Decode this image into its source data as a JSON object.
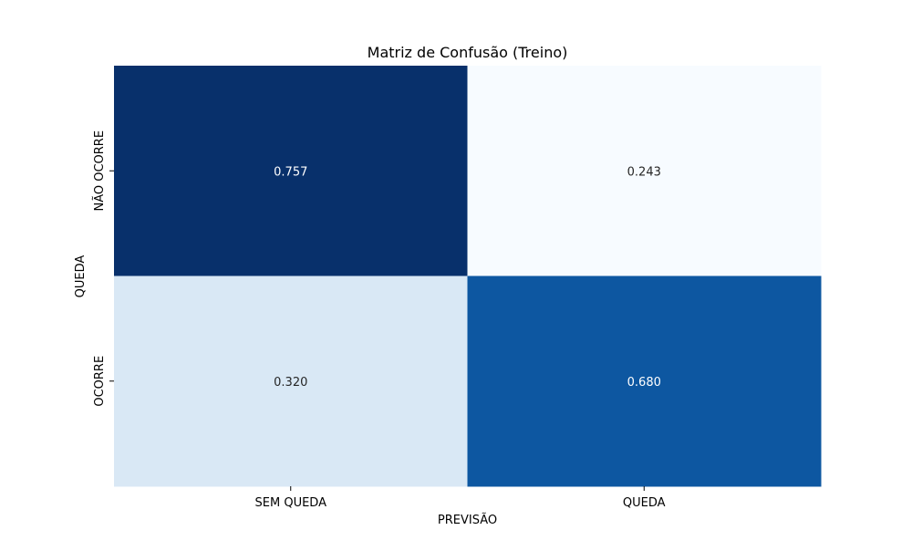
{
  "chart_data": {
    "type": "heatmap",
    "title": "Matriz de Confusão (Treino)",
    "xlabel": "PREVISÃO",
    "ylabel": "QUEDA",
    "x_categories": [
      "SEM QUEDA",
      "QUEDA"
    ],
    "y_categories": [
      "NÃO OCORRE",
      "OCORRE"
    ],
    "values": [
      [
        0.757,
        0.243
      ],
      [
        0.32,
        0.68
      ]
    ],
    "value_labels": [
      [
        "0.757",
        "0.243"
      ],
      [
        "0.320",
        "0.680"
      ]
    ],
    "colormap": "Blues",
    "color_range": [
      0.243,
      0.757
    ],
    "colorbar": false,
    "grid": false
  }
}
